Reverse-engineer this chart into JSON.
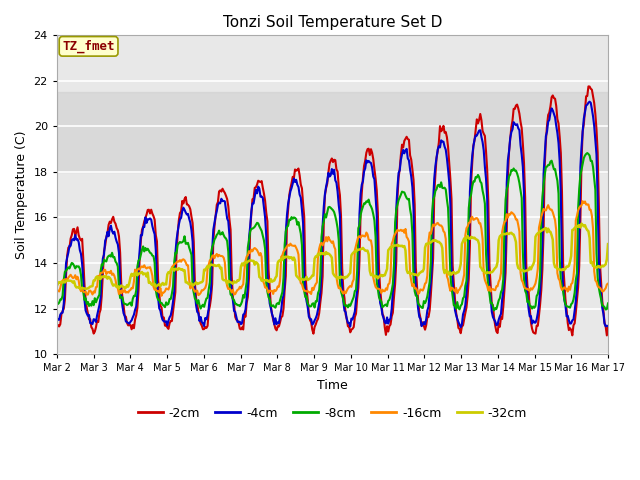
{
  "title": "Tonzi Soil Temperature Set D",
  "xlabel": "Time",
  "ylabel": "Soil Temperature (C)",
  "ylim": [
    10,
    24
  ],
  "yticks": [
    10,
    12,
    14,
    16,
    18,
    20,
    22,
    24
  ],
  "x_labels": [
    "Mar 2",
    "Mar 3",
    "Mar 4",
    "Mar 5",
    "Mar 6",
    "Mar 7",
    "Mar 8",
    "Mar 9",
    "Mar 10",
    "Mar 11",
    "Mar 12",
    "Mar 13",
    "Mar 14",
    "Mar 15",
    "Mar 16",
    "Mar 17"
  ],
  "annotation_text": "TZ_fmet",
  "annotation_color": "#8B0000",
  "annotation_bg": "#FFFFCC",
  "annotation_edge": "#999900",
  "series_labels": [
    "-2cm",
    "-4cm",
    "-8cm",
    "-16cm",
    "-32cm"
  ],
  "series_colors": [
    "#CC0000",
    "#0000CC",
    "#00AA00",
    "#FF8800",
    "#CCCC00"
  ],
  "series_lw": [
    1.5,
    1.5,
    1.5,
    1.5,
    1.8
  ],
  "n_points": 480,
  "days": 15,
  "bg_color": "#E8E8E8",
  "grid_color": "#FFFFFF",
  "band_low": 18.0,
  "band_high": 21.5
}
